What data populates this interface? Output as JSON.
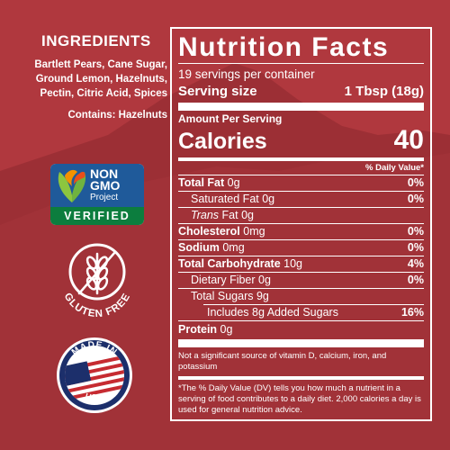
{
  "colors": {
    "background": "#b0383e",
    "mountain": "#9c2f35",
    "nongmo_blue": "#1f5a9a",
    "nongmo_green": "#0c7d3e"
  },
  "ingredients": {
    "title": "INGREDIENTS",
    "lines": [
      "Bartlett Pears, Cane Sugar,",
      "Ground Lemon, Hazelnuts,",
      "Pectin, Citric Acid, Spices"
    ],
    "contains": "Contains: Hazelnuts"
  },
  "badges": {
    "non_gmo": {
      "line1": "NON",
      "line2": "GMO",
      "line3": "Project",
      "verified": "VERIFIED",
      "icon": "butterfly-leaf-icon"
    },
    "gluten_free": {
      "text": "GLUTEN FREE",
      "icon": "wheat-icon"
    },
    "made_in_usa": {
      "top": "MADE IN",
      "bottom": "USA",
      "icon": "usa-flag-icon"
    }
  },
  "nutrition": {
    "title": "Nutrition Facts",
    "servings": "19 servings per container",
    "serving_size_label": "Serving size",
    "serving_size_value": "1 Tbsp (18g)",
    "amount_per_serving": "Amount Per Serving",
    "calories_label": "Calories",
    "calories_value": "40",
    "dv_header": "% Daily Value*",
    "rows": [
      {
        "label": "Total Fat",
        "amount": "0g",
        "pct": "0%"
      },
      {
        "label": "Saturated Fat",
        "amount": "0g",
        "pct": "0%"
      },
      {
        "label_italic": "Trans",
        "label": "Fat",
        "amount": "0g",
        "pct": ""
      },
      {
        "label": "Cholesterol",
        "amount": "0mg",
        "pct": "0%"
      },
      {
        "label": "Sodium",
        "amount": "0mg",
        "pct": "0%"
      },
      {
        "label": "Total Carbohydrate",
        "amount": "10g",
        "pct": "4%"
      },
      {
        "label": "Dietary Fiber",
        "amount": "0g",
        "pct": "0%"
      },
      {
        "label": "Total Sugars",
        "amount": "9g",
        "pct": ""
      },
      {
        "label": "Includes 8g Added Sugars",
        "amount": "",
        "pct": "16%"
      },
      {
        "label": "Protein",
        "amount": "0g",
        "pct": ""
      }
    ],
    "footnote1": "Not a significant source of vitamin D, calcium, iron, and potassium",
    "footnote2": "*The % Daily Value (DV) tells you how much a nutrient in a serving of food contributes to a daily diet. 2,000 calories a day is used for general nutrition advice."
  }
}
